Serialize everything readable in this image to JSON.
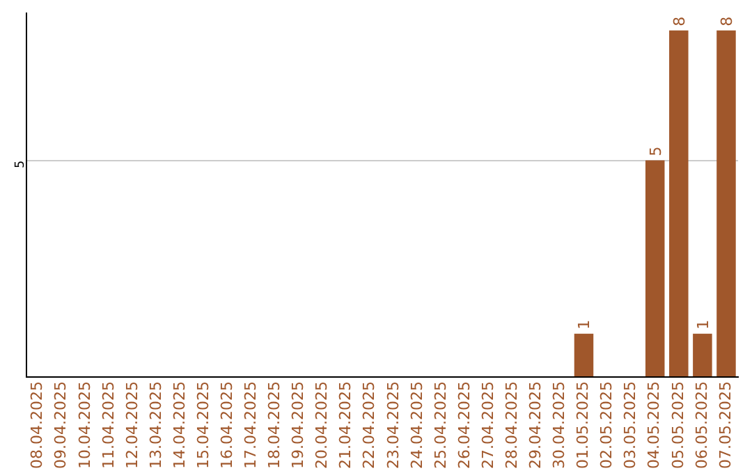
{
  "chart_data": {
    "type": "bar",
    "categories": [
      "08.04.2025",
      "09.04.2025",
      "10.04.2025",
      "11.04.2025",
      "12.04.2025",
      "13.04.2025",
      "14.04.2025",
      "15.04.2025",
      "16.04.2025",
      "17.04.2025",
      "18.04.2025",
      "19.04.2025",
      "20.04.2025",
      "21.04.2025",
      "22.04.2025",
      "23.04.2025",
      "24.04.2025",
      "25.04.2025",
      "26.04.2025",
      "27.04.2025",
      "28.04.2025",
      "29.04.2025",
      "30.04.2025",
      "01.05.2025",
      "02.05.2025",
      "03.05.2025",
      "04.05.2025",
      "05.05.2025",
      "06.05.2025",
      "07.05.2025"
    ],
    "values": [
      null,
      null,
      null,
      null,
      null,
      null,
      null,
      null,
      null,
      null,
      null,
      null,
      null,
      null,
      null,
      null,
      null,
      null,
      null,
      null,
      null,
      null,
      null,
      1,
      null,
      null,
      5,
      8,
      1,
      8
    ],
    "data_labels": true,
    "color": "#a0572b",
    "ylim": [
      0,
      8.4
    ],
    "yticks": [
      {
        "value": 0,
        "label": null
      },
      5
    ],
    "grid": "y",
    "legend": false
  }
}
